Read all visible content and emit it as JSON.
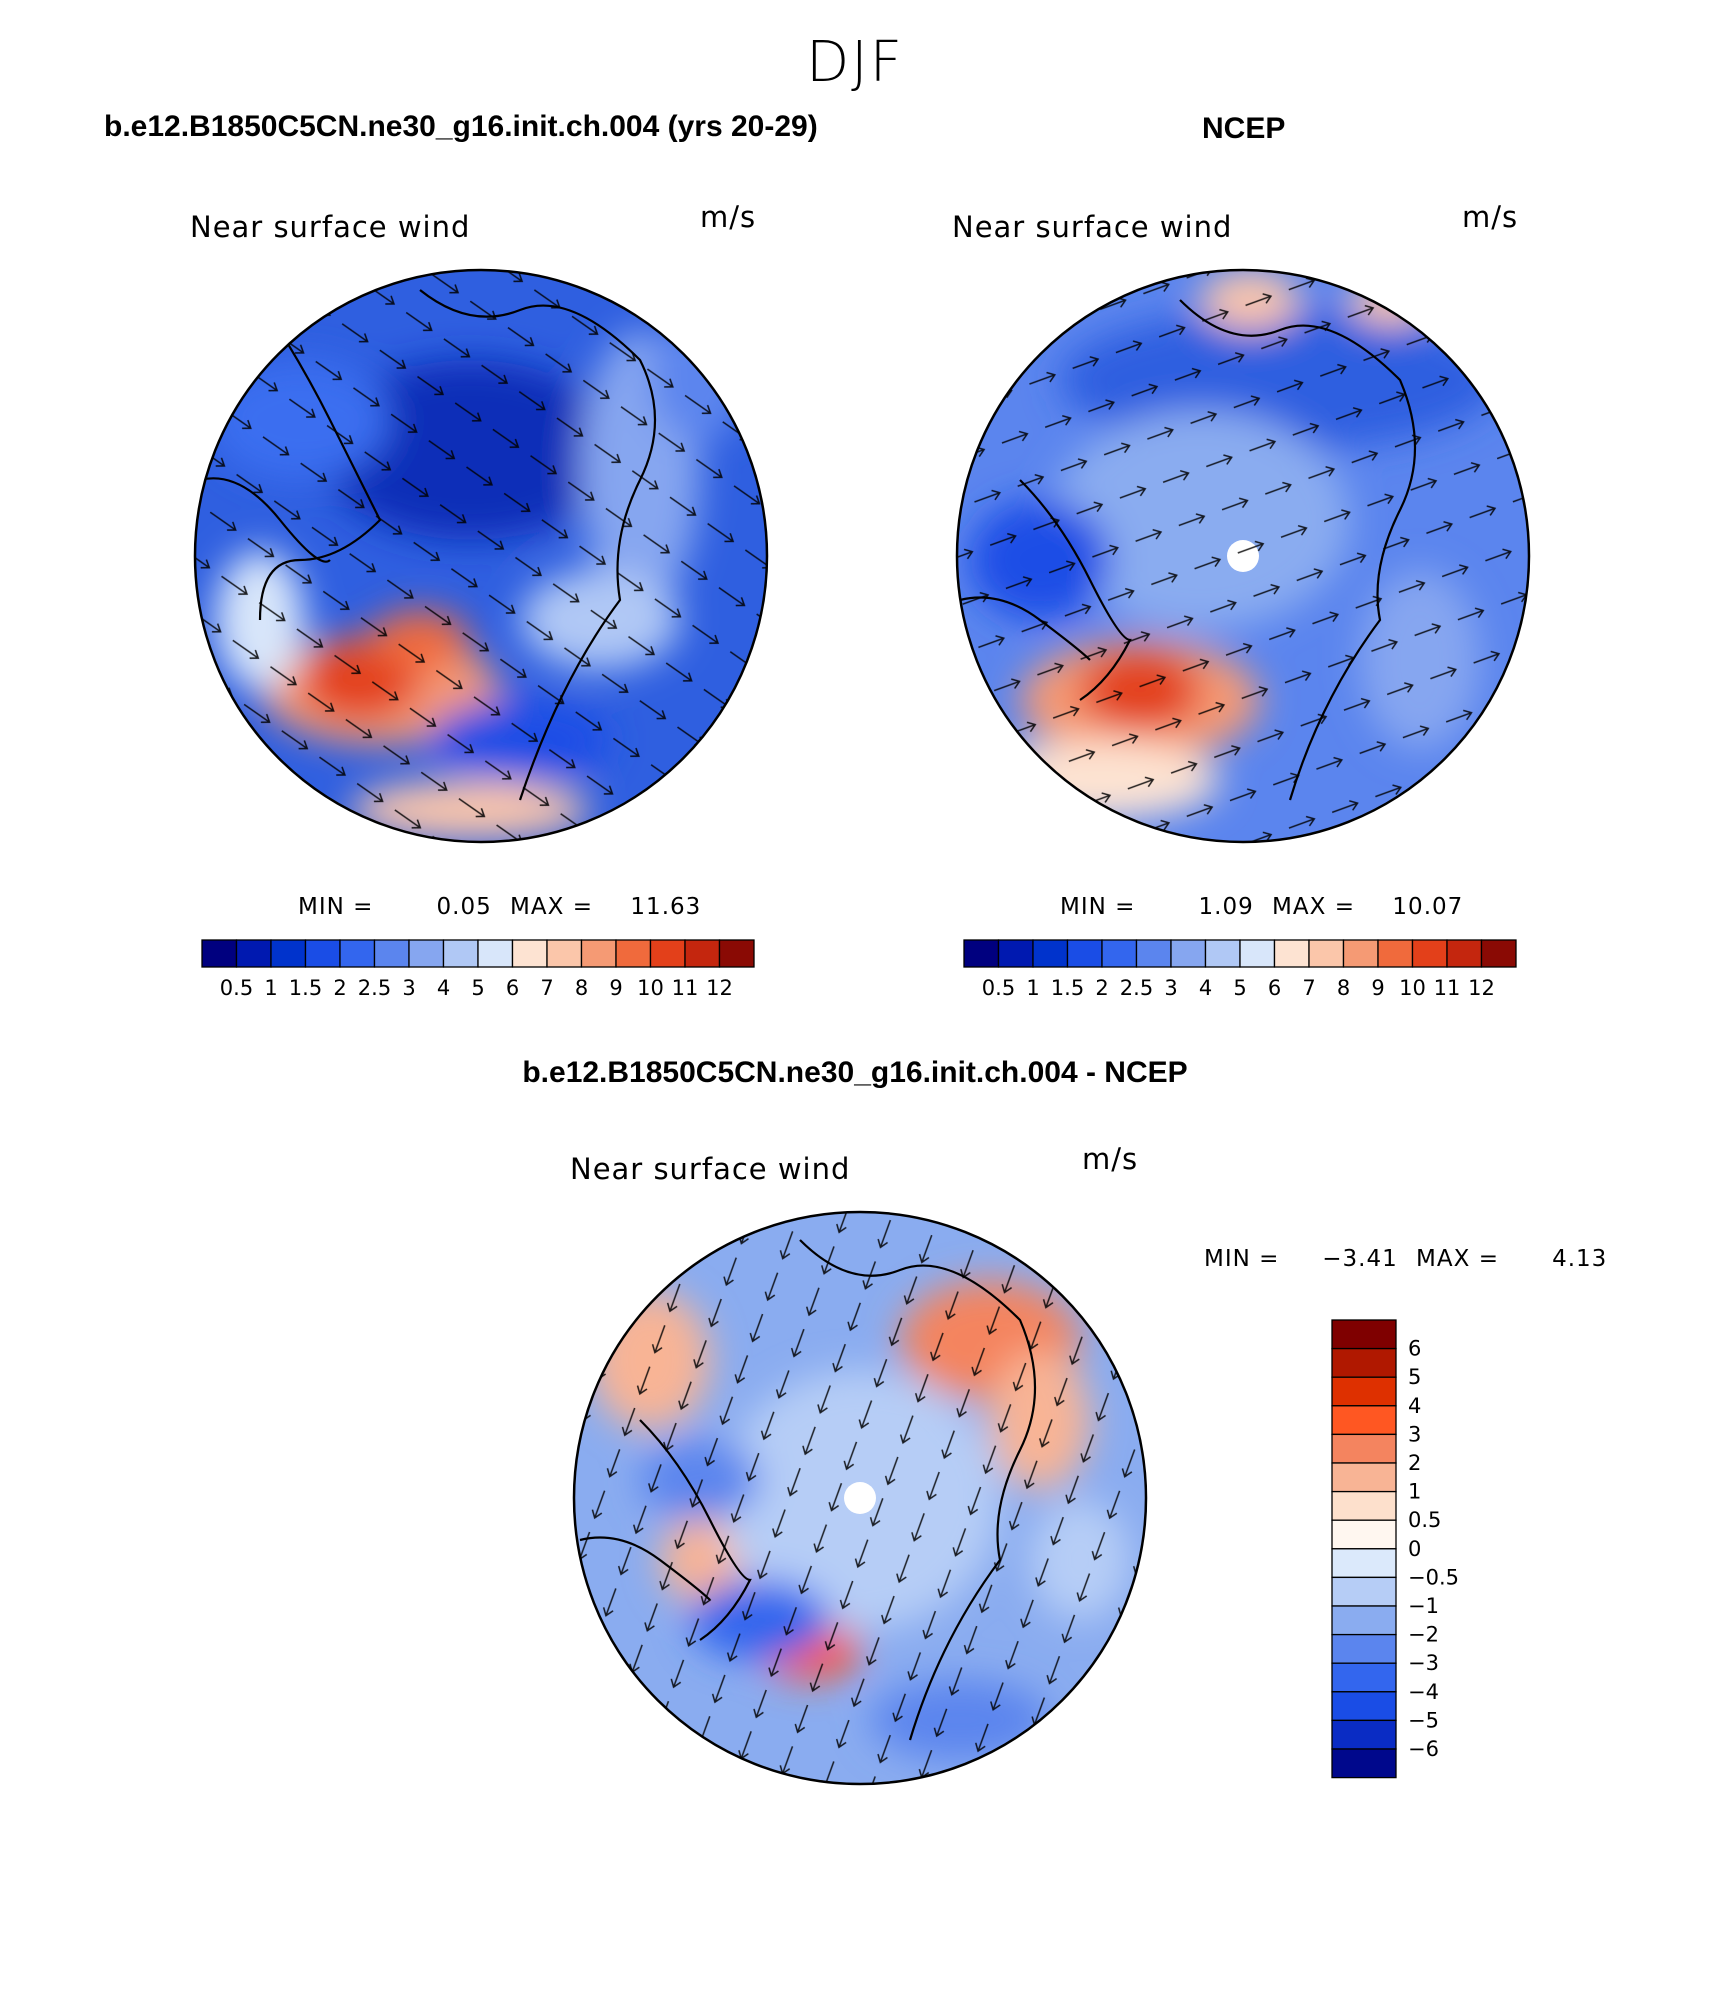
{
  "figure": {
    "title": "DJF"
  },
  "panels": {
    "model": {
      "title": "b.e12.B1850C5CN.ne30_g16.init.ch.004 (yrs 20-29)",
      "label": "Near surface wind",
      "units": "m/s",
      "stats": {
        "min_label": "MIN =",
        "min": "0.05",
        "max_label": "MAX =",
        "max": "11.63"
      }
    },
    "obs": {
      "title": "NCEP",
      "label": "Near surface wind",
      "units": "m/s",
      "stats": {
        "min_label": "MIN =",
        "min": "1.09",
        "max_label": "MAX =",
        "max": "10.07"
      }
    },
    "diff": {
      "title": "b.e12.B1850C5CN.ne30_g16.init.ch.004 - NCEP",
      "label": "Near surface wind",
      "units": "m/s",
      "stats": {
        "min_label": "MIN =",
        "min": "−3.41",
        "max_label": "MAX =",
        "max": "4.13"
      }
    }
  },
  "colorbars": {
    "absolute": {
      "ticks": [
        "0.5",
        "1",
        "1.5",
        "2",
        "2.5",
        "3",
        "4",
        "5",
        "6",
        "7",
        "8",
        "9",
        "10",
        "11",
        "12"
      ],
      "colors": [
        "#00007f",
        "#0019b0",
        "#0033cc",
        "#1a4de6",
        "#3366ee",
        "#5b85ee",
        "#86a6f0",
        "#b0c8f5",
        "#d8e6fa",
        "#fde3d2",
        "#fbc6aa",
        "#f59a74",
        "#f06a3c",
        "#e3401a",
        "#c4260e",
        "#8a0a04"
      ]
    },
    "difference": {
      "ticks": [
        "6",
        "5",
        "4",
        "3",
        "2",
        "1",
        "0.5",
        "0",
        "−0.5",
        "−1",
        "−2",
        "−3",
        "−4",
        "−5",
        "−6"
      ],
      "colors": [
        "#7f0000",
        "#b01800",
        "#de3000",
        "#ff5722",
        "#f4845f",
        "#f8b495",
        "#fde0cc",
        "#fff7f0",
        "#dbe9fb",
        "#b6cdf6",
        "#8aacf0",
        "#5b85ee",
        "#3366ee",
        "#1a4de6",
        "#0a2cc4",
        "#00088c"
      ]
    }
  },
  "chart_data": {
    "type": "heatmap",
    "projection": "north polar stereographic",
    "season": "DJF",
    "variable": "Near surface wind",
    "units": "m/s",
    "maps": [
      {
        "name": "model",
        "min": 0.05,
        "max": 11.63,
        "levels": [
          0.5,
          1,
          1.5,
          2,
          2.5,
          3,
          4,
          5,
          6,
          7,
          8,
          9,
          10,
          11,
          12
        ]
      },
      {
        "name": "NCEP",
        "min": 1.09,
        "max": 10.07,
        "levels": [
          0.5,
          1,
          1.5,
          2,
          2.5,
          3,
          4,
          5,
          6,
          7,
          8,
          9,
          10,
          11,
          12
        ]
      },
      {
        "name": "model - NCEP",
        "min": -3.41,
        "max": 4.13,
        "levels": [
          -6,
          -5,
          -4,
          -3,
          -2,
          -1,
          -0.5,
          0,
          0.5,
          1,
          2,
          3,
          4,
          5,
          6
        ]
      }
    ]
  }
}
